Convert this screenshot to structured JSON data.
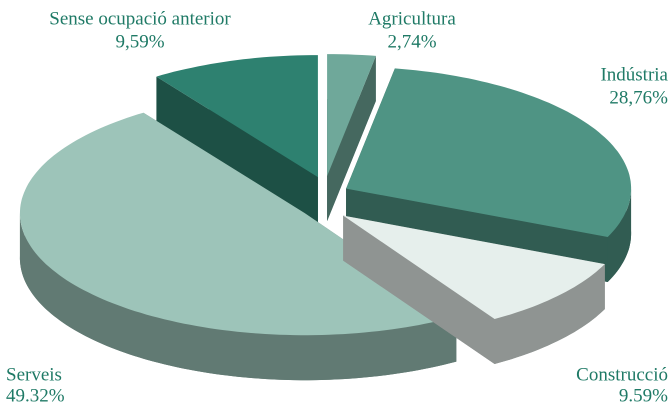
{
  "chart_data": {
    "type": "pie",
    "categories": [
      "Agricultura",
      "Indústria",
      "Construcció",
      "Serveis",
      "Sense ocupació anterior"
    ],
    "values": [
      2.74,
      28.76,
      9.59,
      49.32,
      9.59
    ],
    "value_labels": [
      "2,74%",
      "28,76%",
      "9.59%",
      "49.32%",
      "9,59%"
    ],
    "colors": [
      "#6fa89a",
      "#4f9484",
      "#e6efec",
      "#9dc4b9",
      "#2e8170"
    ]
  }
}
